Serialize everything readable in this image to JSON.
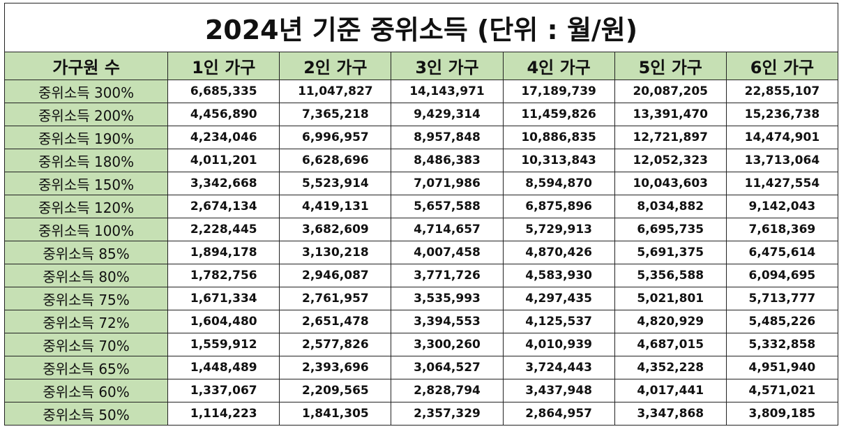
{
  "title": "2024년 기준 중위소득 (단위 : 월/원)",
  "colors": {
    "header_bg": "#c6e0b4",
    "border": "#222222"
  },
  "table": {
    "headers": [
      "가구원 수",
      "1인 가구",
      "2인 가구",
      "3인 가구",
      "4인 가구",
      "5인 가구",
      "6인 가구"
    ],
    "rows": [
      [
        "중위소득 300%",
        "6,685,335",
        "11,047,827",
        "14,143,971",
        "17,189,739",
        "20,087,205",
        "22,855,107"
      ],
      [
        "중위소득 200%",
        "4,456,890",
        "7,365,218",
        "9,429,314",
        "11,459,826",
        "13,391,470",
        "15,236,738"
      ],
      [
        "중위소득 190%",
        "4,234,046",
        "6,996,957",
        "8,957,848",
        "10,886,835",
        "12,721,897",
        "14,474,901"
      ],
      [
        "중위소득 180%",
        "4,011,201",
        "6,628,696",
        "8,486,383",
        "10,313,843",
        "12,052,323",
        "13,713,064"
      ],
      [
        "중위소득 150%",
        "3,342,668",
        "5,523,914",
        "7,071,986",
        "8,594,870",
        "10,043,603",
        "11,427,554"
      ],
      [
        "중위소득 120%",
        "2,674,134",
        "4,419,131",
        "5,657,588",
        "6,875,896",
        "8,034,882",
        "9,142,043"
      ],
      [
        "중위소득 100%",
        "2,228,445",
        "3,682,609",
        "4,714,657",
        "5,729,913",
        "6,695,735",
        "7,618,369"
      ],
      [
        "중위소득 85%",
        "1,894,178",
        "3,130,218",
        "4,007,458",
        "4,870,426",
        "5,691,375",
        "6,475,614"
      ],
      [
        "중위소득 80%",
        "1,782,756",
        "2,946,087",
        "3,771,726",
        "4,583,930",
        "5,356,588",
        "6,094,695"
      ],
      [
        "중위소득 75%",
        "1,671,334",
        "2,761,957",
        "3,535,993",
        "4,297,435",
        "5,021,801",
        "5,713,777"
      ],
      [
        "중위소득 72%",
        "1,604,480",
        "2,651,478",
        "3,394,553",
        "4,125,537",
        "4,820,929",
        "5,485,226"
      ],
      [
        "중위소득 70%",
        "1,559,912",
        "2,577,826",
        "3,300,260",
        "4,010,939",
        "4,687,015",
        "5,332,858"
      ],
      [
        "중위소득 65%",
        "1,448,489",
        "2,393,696",
        "3,064,527",
        "3,724,443",
        "4,352,228",
        "4,951,940"
      ],
      [
        "중위소득 60%",
        "1,337,067",
        "2,209,565",
        "2,828,794",
        "3,437,948",
        "4,017,441",
        "4,571,021"
      ],
      [
        "중위소득 50%",
        "1,114,223",
        "1,841,305",
        "2,357,329",
        "2,864,957",
        "3,347,868",
        "3,809,185"
      ]
    ]
  }
}
